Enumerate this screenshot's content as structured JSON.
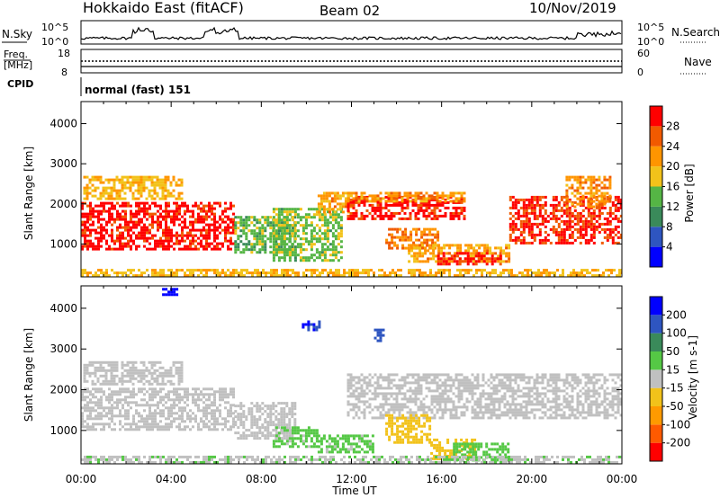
{
  "header": {
    "title": "Hokkaido East (fitACF)",
    "beam": "Beam 02",
    "date": "10/Nov/2019"
  },
  "noise_panel": {
    "left_label": "N.Sky",
    "right_label": "N.Search",
    "yticks": [
      "10^5",
      "10^0"
    ]
  },
  "freq_panel": {
    "left_label_1": "Freq.",
    "left_label_2": "[MHz]",
    "right_label": "Nave",
    "left_ticks": [
      "18",
      "8"
    ],
    "right_ticks": [
      "60",
      "0"
    ]
  },
  "cpid_panel": {
    "label": "CPID",
    "mode": "normal (fast) 151"
  },
  "colors": {
    "power": [
      "#0000ff",
      "#2e55c0",
      "#3a8a5a",
      "#55b545",
      "#f2c21a",
      "#ff9500",
      "#f15a00",
      "#ff0000"
    ],
    "velocity": [
      "#ff0000",
      "#ff5a00",
      "#ff9a00",
      "#f2c21a",
      "#c0c0c0",
      "#55c845",
      "#3a8a5a",
      "#2e55c0",
      "#0000ff"
    ]
  },
  "chart_data": [
    {
      "type": "heatmap",
      "title": "",
      "ylabel": "Slant Range [km]",
      "xlabel": "",
      "x_range_hours": [
        0,
        24
      ],
      "ylim_km": [
        180,
        4550
      ],
      "yticks": [
        "1000",
        "2000",
        "3000",
        "4000"
      ],
      "xticks": [
        "00:00",
        "04:00",
        "08:00",
        "12:00",
        "16:00",
        "20:00",
        "00:00"
      ],
      "colorbar": {
        "label": "Power [dB]",
        "ticks": [
          "4",
          "8",
          "12",
          "16",
          "20",
          "24",
          "28"
        ],
        "range": [
          0,
          30
        ]
      },
      "regions": [
        {
          "t": [
            0.0,
            6.8
          ],
          "r": [
            900,
            2050
          ],
          "value": 28
        },
        {
          "t": [
            0.1,
            4.5
          ],
          "r": [
            2150,
            2700
          ],
          "value": 18
        },
        {
          "t": [
            6.8,
            9.5
          ],
          "r": [
            800,
            1700
          ],
          "value": 13
        },
        {
          "t": [
            8.5,
            11.5
          ],
          "r": [
            600,
            1900
          ],
          "value": 14
        },
        {
          "t": [
            10.5,
            12.0
          ],
          "r": [
            1800,
            2300
          ],
          "value": 20
        },
        {
          "t": [
            11.8,
            17.0
          ],
          "r": [
            1600,
            2200
          ],
          "value": 28
        },
        {
          "t": [
            11.8,
            17.0
          ],
          "r": [
            2050,
            2300
          ],
          "value": 21
        },
        {
          "t": [
            13.5,
            15.8
          ],
          "r": [
            900,
            1400
          ],
          "value": 22
        },
        {
          "t": [
            14.5,
            19.0
          ],
          "r": [
            560,
            1000
          ],
          "value": 20
        },
        {
          "t": [
            15.8,
            18.6
          ],
          "r": [
            480,
            800
          ],
          "value": 28
        },
        {
          "t": [
            19.0,
            24.0
          ],
          "r": [
            1000,
            2200
          ],
          "value": 27
        },
        {
          "t": [
            21.5,
            23.5
          ],
          "r": [
            1900,
            2700
          ],
          "value": 21
        },
        {
          "t": [
            0.0,
            24.0
          ],
          "r": [
            180,
            380
          ],
          "value": 18
        }
      ]
    },
    {
      "type": "heatmap",
      "title": "",
      "ylabel": "Slant Range [km]",
      "xlabel": "Time UT",
      "x_range_hours": [
        0,
        24
      ],
      "ylim_km": [
        180,
        4550
      ],
      "yticks": [
        "1000",
        "2000",
        "3000",
        "4000"
      ],
      "xticks": [
        "00:00",
        "04:00",
        "08:00",
        "12:00",
        "16:00",
        "20:00",
        "00:00"
      ],
      "colorbar": {
        "label": "Velocity [m s-1]",
        "ticks": [
          "200",
          "100",
          "50",
          "15",
          "-15",
          "-50",
          "-100",
          "-200"
        ],
        "range": [
          -250,
          250
        ]
      },
      "regions": [
        {
          "t": [
            0.0,
            6.8
          ],
          "r": [
            1000,
            2050
          ],
          "value": 0
        },
        {
          "t": [
            0.1,
            4.5
          ],
          "r": [
            2150,
            2700
          ],
          "value": 0
        },
        {
          "t": [
            6.8,
            9.5
          ],
          "r": [
            800,
            1700
          ],
          "value": 0
        },
        {
          "t": [
            8.5,
            10.5
          ],
          "r": [
            600,
            1100
          ],
          "value": 40
        },
        {
          "t": [
            10.5,
            13.0
          ],
          "r": [
            500,
            900
          ],
          "value": 40
        },
        {
          "t": [
            11.8,
            24.0
          ],
          "r": [
            1300,
            2400
          ],
          "value": 0
        },
        {
          "t": [
            13.5,
            15.5
          ],
          "r": [
            700,
            1400
          ],
          "value": -60
        },
        {
          "t": [
            15.5,
            17.5
          ],
          "r": [
            300,
            800
          ],
          "value": -60
        },
        {
          "t": [
            16.5,
            19.0
          ],
          "r": [
            300,
            700
          ],
          "value": 60
        },
        {
          "t": [
            9.8,
            10.6
          ],
          "r": [
            3500,
            3700
          ],
          "value": 190
        },
        {
          "t": [
            13.0,
            13.4
          ],
          "r": [
            3200,
            3500
          ],
          "value": 160
        },
        {
          "t": [
            3.6,
            4.2
          ],
          "r": [
            4350,
            4500
          ],
          "value": 210
        },
        {
          "t": [
            0.0,
            24.0
          ],
          "r": [
            180,
            380
          ],
          "value": 20
        }
      ]
    }
  ]
}
